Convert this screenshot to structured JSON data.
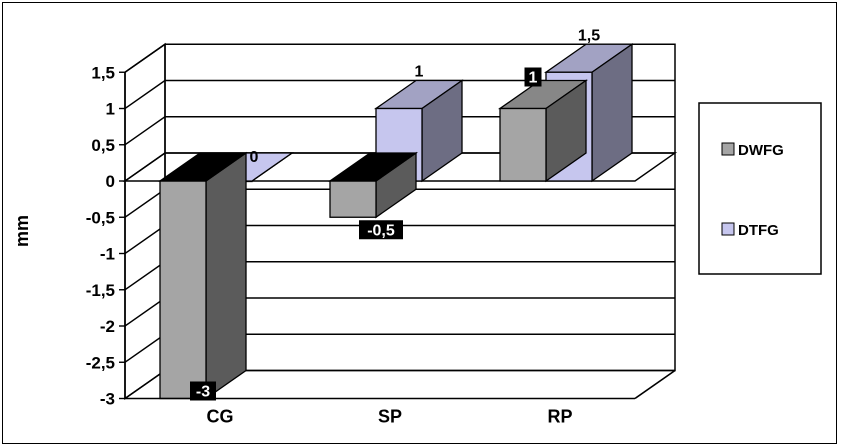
{
  "chart_data": {
    "type": "bar",
    "style": "3d-clustered-column",
    "title": "",
    "xlabel": "",
    "ylabel": "mm",
    "categories": [
      "CG",
      "SP",
      "RP"
    ],
    "series": [
      {
        "name": "DWFG",
        "values": [
          -3,
          -0.5,
          1
        ],
        "color": "#a5a5a5"
      },
      {
        "name": "DTFG",
        "values": [
          0,
          1,
          1.5
        ],
        "color": "#c6c6ee"
      }
    ],
    "data_labels": [
      [
        "-3",
        "-0,5",
        "1"
      ],
      [
        "0",
        "1",
        "1,5"
      ]
    ],
    "ylim": [
      -3,
      1.5
    ],
    "yticks": [
      1.5,
      1,
      0.5,
      0,
      -0.5,
      -1,
      -1.5,
      -2,
      -2.5,
      -3
    ],
    "ytick_labels": [
      "1,5",
      "1",
      "0,5",
      "0",
      "-0,5",
      "-1",
      "-1,5",
      "-2",
      "-2,5",
      "-3"
    ],
    "grid": true,
    "legend": "right"
  }
}
